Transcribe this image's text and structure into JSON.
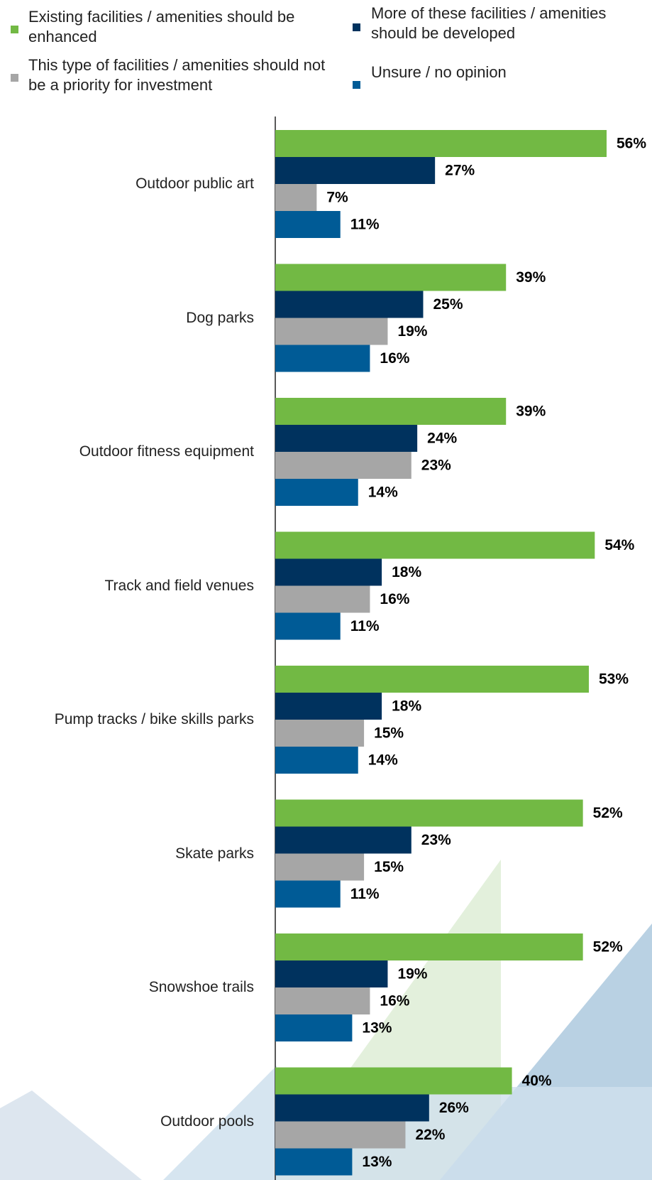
{
  "chart_data": {
    "type": "bar",
    "orientation": "horizontal",
    "categories": [
      "Outdoor public art",
      "Dog parks",
      "Outdoor fitness equipment",
      "Track and field venues",
      "Pump tracks / bike skills parks",
      "Skate parks",
      "Snowshoe trails",
      "Outdoor pools"
    ],
    "series": [
      {
        "name": "Existing facilities / amenities should be enhanced",
        "color": "#72b944",
        "values": [
          56,
          39,
          39,
          54,
          53,
          52,
          52,
          40
        ],
        "value_labels": [
          "56%",
          "39%",
          "39%",
          "54%",
          "53%",
          "52%",
          "52%",
          "40%"
        ]
      },
      {
        "name": "More of these facilities / amenities should be developed",
        "color": "#00325e",
        "values": [
          27,
          25,
          24,
          18,
          18,
          23,
          19,
          26
        ],
        "value_labels": [
          "27%",
          "25%",
          "24%",
          "18%",
          "18%",
          "23%",
          "19%",
          "26%"
        ]
      },
      {
        "name": "This type of facilities / amenities should not be a priority for investment",
        "color": "#a6a6a6",
        "values": [
          7,
          19,
          23,
          16,
          15,
          15,
          16,
          22
        ],
        "value_labels": [
          "7%",
          "19%",
          "23%",
          "16%",
          "15%",
          "15%",
          "16%",
          "22%"
        ]
      },
      {
        "name": "Unsure / no opinion",
        "color": "#005b96",
        "values": [
          11,
          16,
          14,
          11,
          14,
          11,
          13,
          13
        ],
        "value_labels": [
          "11%",
          "16%",
          "14%",
          "11%",
          "14%",
          "11%",
          "13%",
          "13%"
        ]
      }
    ]
  }
}
